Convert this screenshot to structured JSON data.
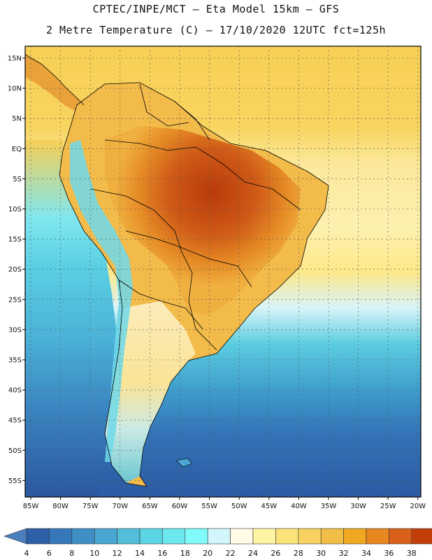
{
  "header": {
    "line1": "CPTEC/INPE/MCT –  Eta Model 15km – GFS",
    "line2": "2 Metre Temperature (C) – 17/10/2020 12UTC fct=125h"
  },
  "axes": {
    "lat_labels": [
      "15N",
      "10N",
      "5N",
      "EQ",
      "5S",
      "10S",
      "15S",
      "20S",
      "25S",
      "30S",
      "35S",
      "40S",
      "45S",
      "50S",
      "55S"
    ],
    "lon_labels": [
      "85W",
      "80W",
      "75W",
      "70W",
      "65W",
      "60W",
      "55W",
      "50W",
      "45W",
      "40W",
      "35W",
      "30W",
      "25W",
      "20W"
    ]
  },
  "colorbar": {
    "labels": [
      "4",
      "6",
      "8",
      "10",
      "12",
      "14",
      "16",
      "18",
      "20",
      "22",
      "24",
      "26",
      "28",
      "30",
      "32",
      "34",
      "36",
      "38"
    ],
    "colors": [
      "#2d60a6",
      "#3577b8",
      "#3f8fc6",
      "#4aa7d3",
      "#52bed9",
      "#5bd4e4",
      "#6ce9ef",
      "#80fbfa",
      "#d2f6fb",
      "#fffbe6",
      "#fdf5a4",
      "#fbe37a",
      "#f7d260",
      "#f0be46",
      "#f0a820",
      "#e8861f",
      "#d8601a",
      "#c23f0b"
    ],
    "left_cap": "#4a7fbf",
    "right_cap": "#b8410e"
  }
}
